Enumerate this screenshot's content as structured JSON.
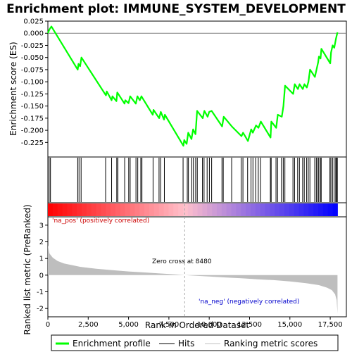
{
  "chart_data": {
    "type": "line",
    "title": "Enrichment plot: IMMUNE_SYSTEM_DEVELOPMENT",
    "top_panel": {
      "ylabel": "Enrichment score (ES)",
      "ylim": [
        -0.255,
        0.025
      ],
      "yticks": [
        0.025,
        0.0,
        -0.025,
        -0.05,
        -0.075,
        -0.1,
        -0.125,
        -0.15,
        -0.175,
        -0.2,
        -0.225
      ],
      "ytick_labels": [
        "0.025",
        "0.000",
        "-0.025",
        "-0.050",
        "-0.075",
        "-0.100",
        "-0.125",
        "-0.150",
        "-0.175",
        "-0.200",
        "-0.225"
      ],
      "series_name": "Enrichment profile",
      "series_color": "#00ff00",
      "es_profile": [
        [
          0,
          0.0
        ],
        [
          100,
          0.008
        ],
        [
          220,
          0.014
        ],
        [
          1850,
          -0.075
        ],
        [
          1900,
          -0.063
        ],
        [
          2000,
          -0.068
        ],
        [
          2080,
          -0.05
        ],
        [
          3600,
          -0.128
        ],
        [
          3650,
          -0.12
        ],
        [
          3950,
          -0.138
        ],
        [
          4000,
          -0.13
        ],
        [
          4250,
          -0.14
        ],
        [
          4300,
          -0.122
        ],
        [
          4750,
          -0.145
        ],
        [
          4800,
          -0.138
        ],
        [
          5000,
          -0.144
        ],
        [
          5100,
          -0.13
        ],
        [
          5450,
          -0.145
        ],
        [
          5550,
          -0.13
        ],
        [
          5700,
          -0.138
        ],
        [
          5800,
          -0.13
        ],
        [
          6500,
          -0.168
        ],
        [
          6550,
          -0.158
        ],
        [
          6900,
          -0.175
        ],
        [
          7000,
          -0.162
        ],
        [
          7200,
          -0.178
        ],
        [
          7250,
          -0.168
        ],
        [
          8400,
          -0.232
        ],
        [
          8450,
          -0.22
        ],
        [
          8600,
          -0.228
        ],
        [
          8700,
          -0.205
        ],
        [
          8900,
          -0.218
        ],
        [
          9000,
          -0.198
        ],
        [
          9150,
          -0.208
        ],
        [
          9250,
          -0.16
        ],
        [
          9600,
          -0.175
        ],
        [
          9700,
          -0.16
        ],
        [
          9900,
          -0.172
        ],
        [
          10000,
          -0.162
        ],
        [
          10150,
          -0.16
        ],
        [
          10800,
          -0.192
        ],
        [
          10900,
          -0.172
        ],
        [
          11400,
          -0.192
        ],
        [
          12000,
          -0.212
        ],
        [
          12100,
          -0.205
        ],
        [
          12400,
          -0.222
        ],
        [
          12600,
          -0.198
        ],
        [
          12700,
          -0.205
        ],
        [
          12900,
          -0.19
        ],
        [
          13050,
          -0.195
        ],
        [
          13200,
          -0.182
        ],
        [
          13800,
          -0.215
        ],
        [
          13850,
          -0.182
        ],
        [
          14150,
          -0.195
        ],
        [
          14250,
          -0.168
        ],
        [
          14500,
          -0.172
        ],
        [
          14600,
          -0.15
        ],
        [
          14700,
          -0.108
        ],
        [
          15200,
          -0.125
        ],
        [
          15300,
          -0.105
        ],
        [
          15500,
          -0.115
        ],
        [
          15600,
          -0.105
        ],
        [
          15800,
          -0.115
        ],
        [
          15900,
          -0.105
        ],
        [
          16050,
          -0.112
        ],
        [
          16150,
          -0.1
        ],
        [
          16250,
          -0.075
        ],
        [
          16550,
          -0.09
        ],
        [
          16650,
          -0.075
        ],
        [
          16750,
          -0.06
        ],
        [
          16800,
          -0.048
        ],
        [
          16900,
          -0.052
        ],
        [
          16950,
          -0.032
        ],
        [
          17500,
          -0.062
        ],
        [
          17550,
          -0.04
        ],
        [
          17650,
          -0.025
        ],
        [
          17750,
          -0.03
        ],
        [
          17850,
          -0.012
        ],
        [
          17900,
          -0.005
        ],
        [
          17950,
          0.002
        ]
      ]
    },
    "hits": [
      80,
      160,
      1850,
      1930,
      2060,
      3580,
      3950,
      4270,
      4340,
      4760,
      5010,
      5100,
      5460,
      5570,
      5760,
      5830,
      6520,
      6890,
      6990,
      7220,
      8380,
      8640,
      8710,
      8920,
      9020,
      9160,
      9260,
      9580,
      9680,
      9870,
      10010,
      10150,
      10790,
      10870,
      11390,
      11980,
      12090,
      12380,
      12590,
      12710,
      12880,
      13040,
      13180,
      13790,
      13840,
      14140,
      14240,
      14480,
      14590,
      14690,
      15190,
      15290,
      15480,
      15590,
      15790,
      15890,
      16040,
      16140,
      16240,
      16540,
      16640,
      16740,
      16790,
      16890,
      16940,
      17480,
      17540,
      17640,
      17740,
      17840,
      17890,
      17940
    ],
    "x_axis": {
      "label": "Rank in Ordered Dataset",
      "xlim": [
        0,
        18500
      ],
      "ticks": [
        0,
        2500,
        5000,
        7500,
        10000,
        12500,
        15000,
        17500
      ],
      "tick_labels": [
        "0",
        "2,500",
        "5,000",
        "7,500",
        "10,000",
        "12,500",
        "15,000",
        "17,500"
      ]
    },
    "bottom_panel": {
      "ylabel": "Ranked list metric (PreRanked)",
      "ylim": [
        -2.5,
        3.5
      ],
      "yticks": [
        3,
        2,
        1,
        0,
        -1,
        -2
      ],
      "ytick_labels": [
        "3",
        "2",
        "1",
        "0",
        "-1",
        "-2"
      ],
      "metric_curve": [
        [
          0,
          1.8
        ],
        [
          100,
          1.3
        ],
        [
          300,
          1.05
        ],
        [
          600,
          0.85
        ],
        [
          1000,
          0.7
        ],
        [
          2000,
          0.5
        ],
        [
          3000,
          0.38
        ],
        [
          4000,
          0.3
        ],
        [
          5000,
          0.22
        ],
        [
          6000,
          0.16
        ],
        [
          7000,
          0.1
        ],
        [
          8000,
          0.04
        ],
        [
          8480,
          0.0
        ],
        [
          9000,
          -0.03
        ],
        [
          10000,
          -0.08
        ],
        [
          11000,
          -0.14
        ],
        [
          12000,
          -0.19
        ],
        [
          13000,
          -0.25
        ],
        [
          14000,
          -0.3
        ],
        [
          15000,
          -0.38
        ],
        [
          16000,
          -0.48
        ],
        [
          16800,
          -0.6
        ],
        [
          17300,
          -0.75
        ],
        [
          17600,
          -0.9
        ],
        [
          17800,
          -1.15
        ],
        [
          17900,
          -1.5
        ],
        [
          17950,
          -2.3
        ]
      ]
    },
    "n_genes": 17950,
    "zero_cross": 8480,
    "annotations": {
      "zero_cross_text": "Zero cross at 8480",
      "pos_label": "'na_pos' (positively correlated)",
      "neg_label": "'na_neg' (negatively correlated)"
    },
    "legend": {
      "placement": "bottom",
      "items": [
        {
          "label": "Enrichment profile",
          "color": "#00ff00",
          "kind": "line"
        },
        {
          "label": "Hits",
          "color": "#000000",
          "kind": "line"
        },
        {
          "label": "Ranking metric scores",
          "color": "#c0c0c0",
          "kind": "line"
        }
      ]
    },
    "colors": {
      "profile": "#00ff00",
      "hits": "#000000",
      "metric_fill": "#bebebe",
      "pos_label": "#cc0000",
      "neg_label": "#0000cc",
      "zero_line": "#aaaaaa",
      "bar_red": "#ff0000",
      "bar_pink": "#ffc0cb",
      "bar_blue": "#0000ff"
    }
  }
}
